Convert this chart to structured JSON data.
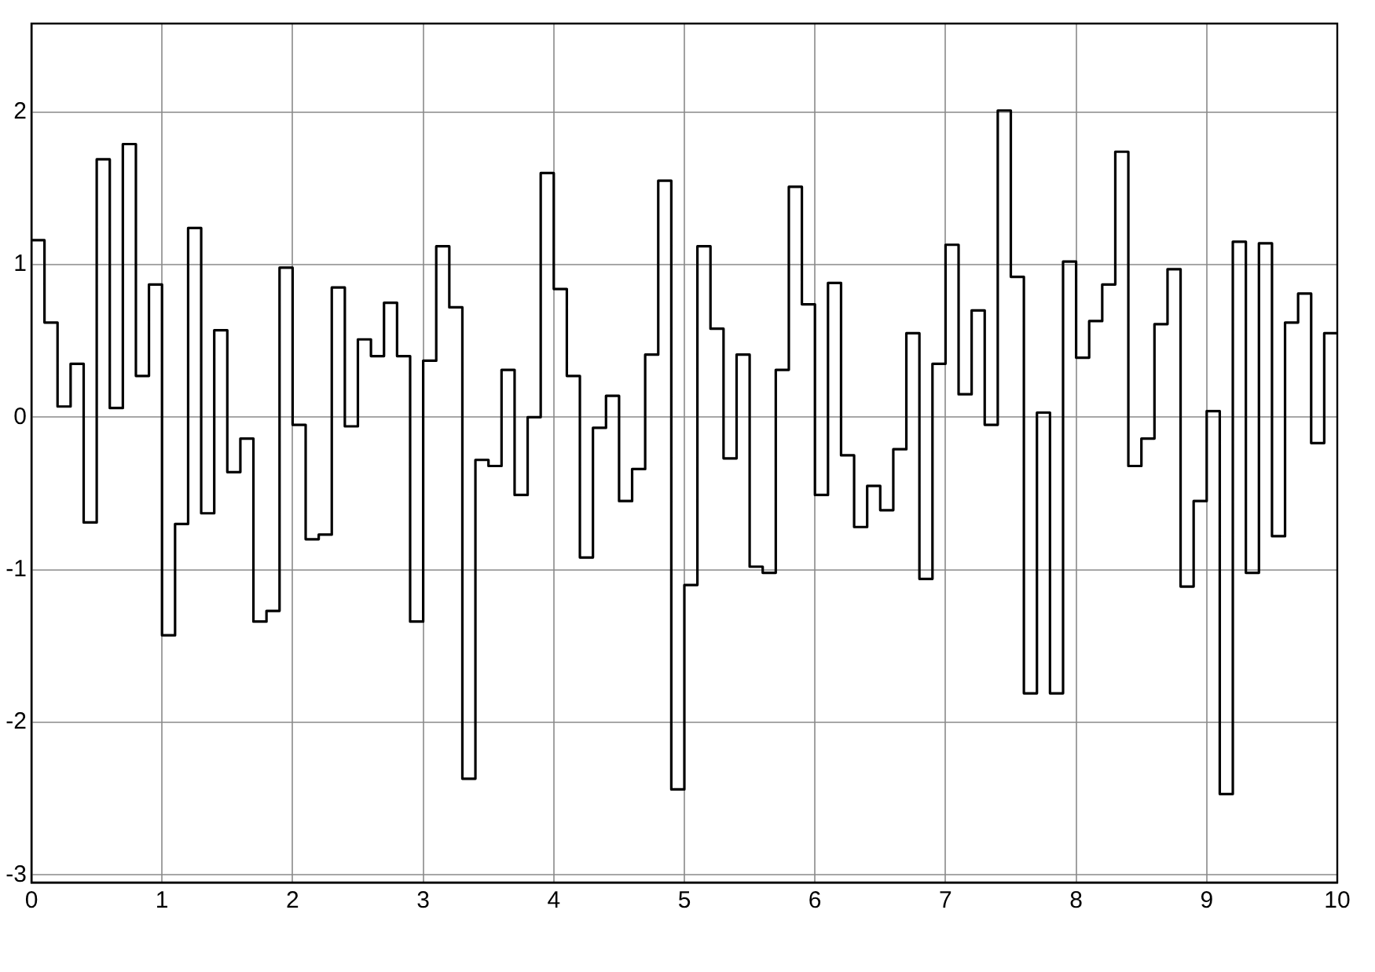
{
  "chart_data": {
    "type": "step",
    "x": [
      0,
      0.1,
      0.2,
      0.3,
      0.4,
      0.5,
      0.6,
      0.7,
      0.8,
      0.9,
      1,
      1.1,
      1.2,
      1.3,
      1.4,
      1.5,
      1.6,
      1.7,
      1.8,
      1.9,
      2,
      2.1,
      2.2,
      2.3,
      2.4,
      2.5,
      2.6,
      2.7,
      2.8,
      2.9,
      3,
      3.1,
      3.2,
      3.3,
      3.4,
      3.5,
      3.6,
      3.7,
      3.8,
      3.9,
      4,
      4.1,
      4.2,
      4.3,
      4.4,
      4.5,
      4.6,
      4.7,
      4.8,
      4.9,
      5,
      5.1,
      5.2,
      5.3,
      5.4,
      5.5,
      5.6,
      5.7,
      5.8,
      5.9,
      6,
      6.1,
      6.2,
      6.3,
      6.4,
      6.5,
      6.6,
      6.7,
      6.8,
      6.9,
      7,
      7.1,
      7.2,
      7.3,
      7.4,
      7.5,
      7.6,
      7.7,
      7.8,
      7.9,
      8,
      8.1,
      8.2,
      8.3,
      8.4,
      8.5,
      8.6,
      8.7,
      8.8,
      8.9,
      9,
      9.1,
      9.2,
      9.3,
      9.4,
      9.5,
      9.6,
      9.7,
      9.8,
      9.9,
      10
    ],
    "series": [
      {
        "color": "#000000",
        "values": [
          1.16,
          0.62,
          0.07,
          0.35,
          -0.69,
          1.69,
          0.06,
          1.79,
          0.27,
          0.87,
          -1.43,
          -0.7,
          1.24,
          -0.63,
          0.57,
          -0.36,
          -0.14,
          -1.34,
          -1.27,
          0.98,
          -0.05,
          -0.8,
          -0.77,
          0.85,
          -0.06,
          0.51,
          0.4,
          0.75,
          0.4,
          -1.34,
          0.37,
          1.12,
          0.72,
          -2.37,
          -0.28,
          -0.32,
          0.31,
          -0.51,
          0,
          1.6,
          0.84,
          0.27,
          -0.92,
          -0.07,
          0.14,
          -0.55,
          -0.34,
          0.41,
          1.55,
          -2.44,
          -1.1,
          1.12,
          0.58,
          -0.27,
          0.41,
          -0.98,
          -1.02,
          0.31,
          1.51,
          0.74,
          -0.51,
          0.88,
          -0.25,
          -0.72,
          -0.45,
          -0.61,
          -0.21,
          0.55,
          -1.06,
          0.35,
          1.13,
          0.15,
          0.7,
          -0.05,
          2.01,
          0.92,
          -1.81,
          0.03,
          -1.81,
          1.02,
          0.39,
          0.63,
          0.87,
          1.74,
          -0.32,
          -0.14,
          0.61,
          0.97,
          -1.11,
          -0.55,
          0.04,
          -2.47,
          1.15,
          -1.02,
          1.14,
          -0.78,
          0.62,
          0.81,
          -0.17,
          0.55,
          0.55
        ]
      }
    ],
    "xlim": [
      0,
      10
    ],
    "xticks": [
      0,
      1,
      2,
      3,
      4,
      5,
      6,
      7,
      8,
      9,
      10
    ],
    "ylim": [
      -3.05,
      2.58
    ],
    "yticks": [
      -3,
      -2,
      -1,
      0,
      1,
      2
    ],
    "grid": true,
    "legend": false,
    "marker": "none",
    "line_style": "solid"
  }
}
